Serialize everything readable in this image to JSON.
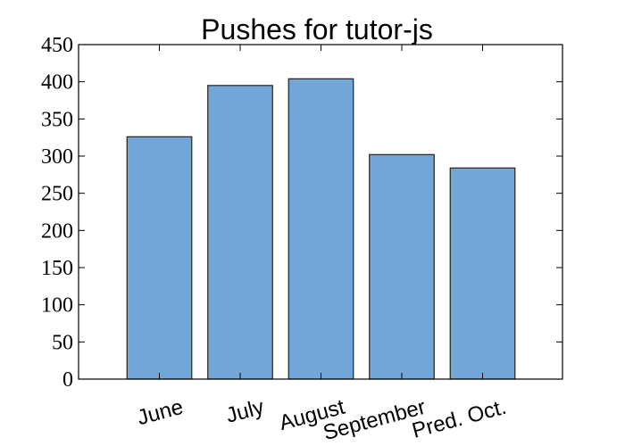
{
  "chart_data": {
    "type": "bar",
    "title": "Pushes for tutor-js",
    "xlabel": "",
    "ylabel": "",
    "categories": [
      "June",
      "July",
      "August",
      "September",
      "Pred. Oct."
    ],
    "values": [
      326,
      395,
      404,
      302,
      284
    ],
    "ylim": [
      0,
      450
    ],
    "yticks": [
      "0",
      "50",
      "100",
      "150",
      "200",
      "250",
      "300",
      "350",
      "400",
      "450"
    ],
    "grid": false,
    "legend": false,
    "bar_color": "#72a6d6",
    "bar_edge_color": "#222222"
  }
}
